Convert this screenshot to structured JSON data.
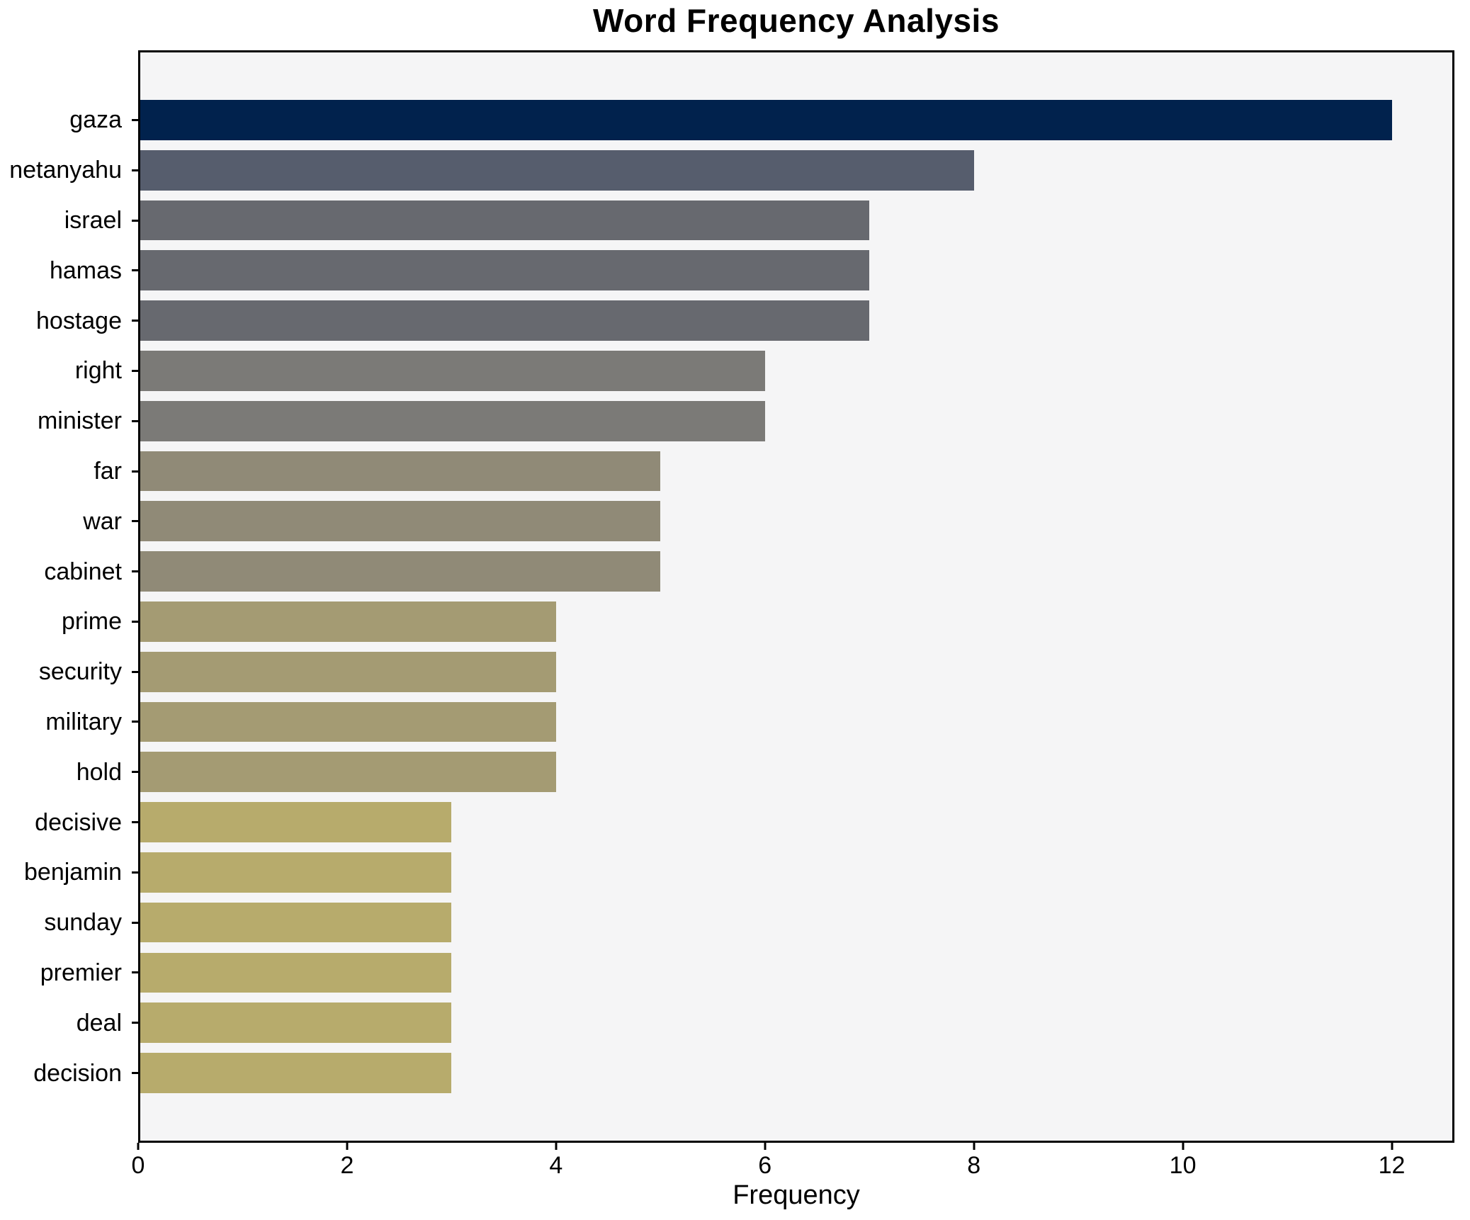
{
  "chart_data": {
    "type": "bar",
    "orientation": "horizontal",
    "title": "Word Frequency Analysis",
    "xlabel": "Frequency",
    "ylabel": "",
    "categories": [
      "gaza",
      "netanyahu",
      "israel",
      "hamas",
      "hostage",
      "right",
      "minister",
      "far",
      "war",
      "cabinet",
      "prime",
      "security",
      "military",
      "hold",
      "decisive",
      "benjamin",
      "sunday",
      "premier",
      "deal",
      "decision"
    ],
    "values": [
      12,
      8,
      7,
      7,
      7,
      6,
      6,
      5,
      5,
      5,
      4,
      4,
      4,
      4,
      3,
      3,
      3,
      3,
      3,
      3
    ],
    "bar_colors": [
      "#01224d",
      "#565d6d",
      "#67696f",
      "#67696f",
      "#67696f",
      "#7b7a77",
      "#7b7a77",
      "#908a77",
      "#908a77",
      "#908a77",
      "#a49b73",
      "#a49b73",
      "#a49b73",
      "#a49b73",
      "#b7ab6c",
      "#b7ab6c",
      "#b7ab6c",
      "#b7ab6c",
      "#b7ab6c",
      "#b7ab6c"
    ],
    "xlim": [
      0,
      12.6
    ],
    "xticks": [
      0,
      2,
      4,
      6,
      8,
      10,
      12
    ],
    "grid": false,
    "legend": null,
    "plot_background": "#f5f5f6",
    "figure_background": "#ffffff",
    "spine_color": "#000000"
  }
}
